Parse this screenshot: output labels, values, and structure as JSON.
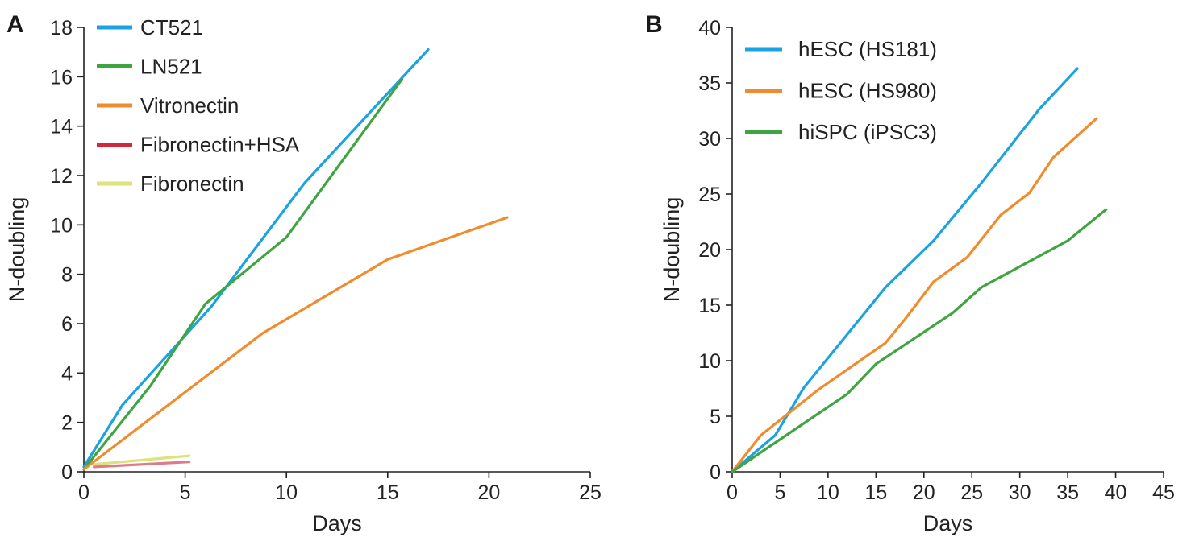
{
  "chart_data": [
    {
      "panel": "A",
      "type": "line",
      "title": "",
      "xlabel": "Days",
      "ylabel": "N-doubling",
      "xlim": [
        0,
        25
      ],
      "ylim": [
        0,
        18
      ],
      "xticks": [
        0,
        5,
        10,
        15,
        20,
        25
      ],
      "yticks": [
        0,
        2,
        4,
        6,
        8,
        10,
        12,
        14,
        16,
        18
      ],
      "legend_position": "top-left",
      "series": [
        {
          "name": "CT521",
          "color": "#1aa3e0",
          "points": [
            [
              0,
              0.2
            ],
            [
              1.9,
              2.7
            ],
            [
              6.3,
              6.7
            ],
            [
              10.9,
              11.7
            ],
            [
              17,
              17.1
            ]
          ]
        },
        {
          "name": "LN521",
          "color": "#3ea540",
          "points": [
            [
              0,
              0.1
            ],
            [
              3.3,
              3.5
            ],
            [
              6.0,
              6.8
            ],
            [
              10.0,
              9.5
            ],
            [
              15.7,
              15.9
            ]
          ]
        },
        {
          "name": "Vitronectin",
          "color": "#f08c2e",
          "points": [
            [
              0,
              0.1
            ],
            [
              8.8,
              5.6
            ],
            [
              15.0,
              8.6
            ],
            [
              20.9,
              10.3
            ]
          ]
        },
        {
          "name": "Fibronectin+HSA",
          "color": "#e07a8a",
          "points": [
            [
              0.5,
              0.2
            ],
            [
              5.2,
              0.4
            ]
          ]
        },
        {
          "name": "Fibronectin",
          "color": "#dde27a",
          "points": [
            [
              0.5,
              0.3
            ],
            [
              5.2,
              0.65
            ]
          ]
        }
      ],
      "legend_colors": [
        "#1aa3e0",
        "#3ea540",
        "#f08c2e",
        "#d0293d",
        "#dde27a"
      ]
    },
    {
      "panel": "B",
      "type": "line",
      "title": "",
      "xlabel": "Days",
      "ylabel": "N-doubling",
      "xlim": [
        0,
        45
      ],
      "ylim": [
        0,
        40
      ],
      "xticks": [
        0,
        5,
        10,
        15,
        20,
        25,
        30,
        35,
        40,
        45
      ],
      "yticks": [
        0,
        5,
        10,
        15,
        20,
        25,
        30,
        35,
        40
      ],
      "legend_position": "top-left",
      "series": [
        {
          "name": "hESC (HS181)",
          "color": "#1aa3e0",
          "points": [
            [
              0,
              0
            ],
            [
              4.5,
              3.3
            ],
            [
              7.5,
              7.6
            ],
            [
              16,
              16.6
            ],
            [
              21,
              20.8
            ],
            [
              26,
              26
            ],
            [
              32,
              32.6
            ],
            [
              36,
              36.3
            ]
          ]
        },
        {
          "name": "hESC (HS980)",
          "color": "#f08c2e",
          "points": [
            [
              0,
              0
            ],
            [
              3,
              3.3
            ],
            [
              9,
              7.4
            ],
            [
              16,
              11.6
            ],
            [
              18,
              13.7
            ],
            [
              21,
              17.1
            ],
            [
              24.5,
              19.3
            ],
            [
              28,
              23.1
            ],
            [
              31,
              25.1
            ],
            [
              33.5,
              28.3
            ],
            [
              38,
              31.8
            ]
          ]
        },
        {
          "name": "hiSPC (iPSC3)",
          "color": "#3ea540",
          "points": [
            [
              0,
              0
            ],
            [
              12,
              7
            ],
            [
              15,
              9.7
            ],
            [
              23,
              14.3
            ],
            [
              26,
              16.6
            ],
            [
              35,
              20.8
            ],
            [
              39,
              23.6
            ]
          ]
        }
      ],
      "legend_colors": [
        "#1aa3e0",
        "#f08c2e",
        "#3ea540"
      ]
    }
  ]
}
